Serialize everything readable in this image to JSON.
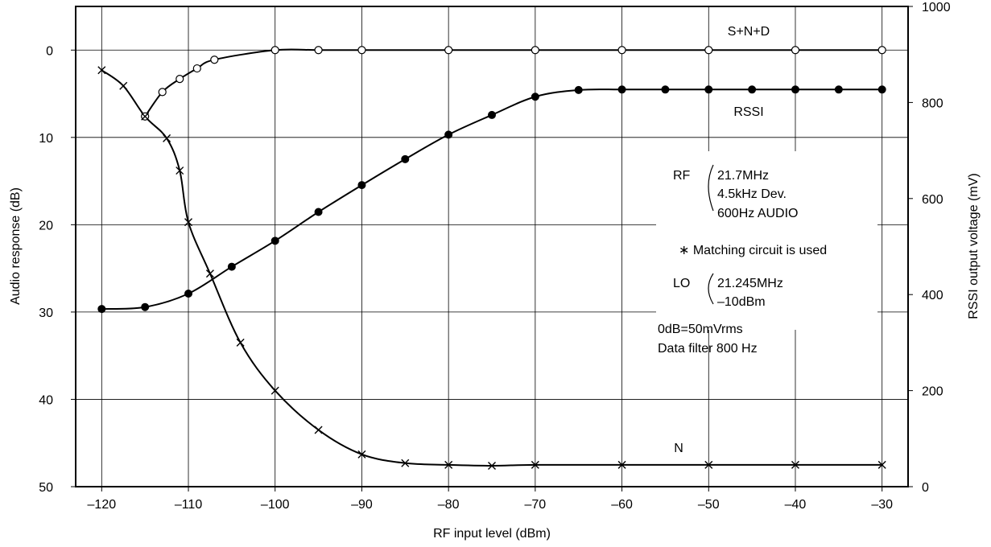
{
  "chart_data": {
    "type": "line",
    "title": "",
    "xlabel": "RF input level (dBm)",
    "ylabel": "Audio response (dB)",
    "y2label": "RSSI output voltage (mV)",
    "xlim": [
      -123,
      -27
    ],
    "ylim": [
      -5,
      50
    ],
    "y2lim": [
      0,
      1000
    ],
    "grid": true,
    "x_ticks": [
      -120,
      -110,
      -100,
      -90,
      -80,
      -70,
      -60,
      -50,
      -40,
      -30
    ],
    "x_tick_labels": [
      "–120",
      "–110",
      "–100",
      "–90",
      "–80",
      "–70",
      "–60",
      "–50",
      "–40",
      "–30"
    ],
    "y_ticks": [
      0,
      10,
      20,
      30,
      40,
      50
    ],
    "y_tick_labels": [
      "0",
      "10",
      "20",
      "30",
      "40",
      "50"
    ],
    "y2_ticks": [
      0,
      200,
      400,
      600,
      800,
      1000
    ],
    "y2_tick_labels": [
      "0",
      "200",
      "400",
      "600",
      "800",
      "1000"
    ],
    "series": [
      {
        "name": "S+N+D",
        "axis": "left",
        "marker": "open-circle",
        "x": [
          -115,
          -113,
          -111,
          -109,
          -107,
          -100,
          -95,
          -90,
          -80,
          -70,
          -60,
          -50,
          -40,
          -30
        ],
        "y": [
          7.6,
          4.8,
          3.3,
          2.1,
          1.1,
          0,
          0,
          0,
          0,
          0,
          0,
          0,
          0,
          0
        ]
      },
      {
        "name": "RSSI",
        "axis": "right",
        "marker": "filled-circle",
        "x": [
          -120,
          -115,
          -110,
          -105,
          -100,
          -95,
          -90,
          -85,
          -80,
          -75,
          -70,
          -65,
          -60,
          -55,
          -50,
          -45,
          -40,
          -35,
          -30
        ],
        "y": [
          370,
          374,
          402,
          458,
          512,
          572,
          628,
          682,
          733,
          774,
          812,
          826,
          827,
          827,
          827,
          827,
          827,
          827,
          827
        ]
      },
      {
        "name": "N",
        "axis": "left",
        "marker": "cross",
        "x": [
          -120,
          -117.5,
          -115,
          -112.5,
          -111,
          -110,
          -107.5,
          -104,
          -100,
          -95,
          -90,
          -85,
          -80,
          -75,
          -70,
          -60,
          -50,
          -40,
          -30
        ],
        "y": [
          2.3,
          4.1,
          7.6,
          10.1,
          13.8,
          19.7,
          25.6,
          33.5,
          39,
          43.5,
          46.3,
          47.3,
          47.5,
          47.6,
          47.5,
          47.5,
          47.5,
          47.5,
          47.5
        ]
      }
    ],
    "annotations": {
      "rf_label": "RF",
      "rf_lines": [
        "21.7MHz",
        "4.5kHz Dev.",
        "600Hz AUDIO"
      ],
      "matching": "∗ Matching circuit is used",
      "lo_label": "LO",
      "lo_lines": [
        "21.245MHz",
        "–10dBm"
      ],
      "ref_lines": [
        "0dB=50mVrms",
        "Data filter 800 Hz"
      ]
    }
  }
}
